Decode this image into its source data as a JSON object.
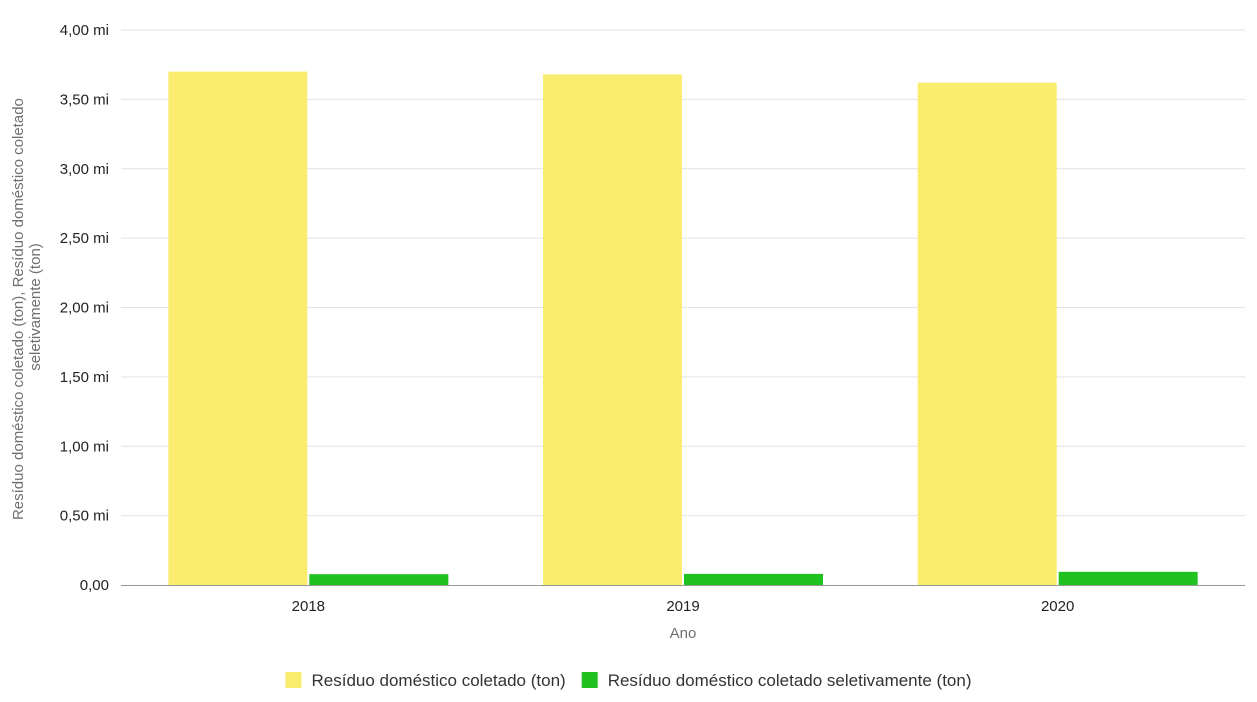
{
  "chart_data": {
    "type": "bar",
    "categories": [
      "2018",
      "2019",
      "2020"
    ],
    "series": [
      {
        "name": "Resíduo doméstico coletado (ton)",
        "color": "#f9ec6e",
        "values": [
          3700000,
          3680000,
          3620000
        ]
      },
      {
        "name": "Resíduo doméstico coletado seletivamente (ton)",
        "color": "#1fc21f",
        "values": [
          78000,
          80000,
          95000
        ]
      }
    ],
    "xlabel": "Ano",
    "ylabel_lines": [
      "Resíduo doméstico coletado (ton), Resíduo doméstico coletado",
      "seletivamente (ton)"
    ],
    "ylim": [
      0,
      4000000
    ],
    "yticks": [
      {
        "value": 0,
        "label": "0,00"
      },
      {
        "value": 500000,
        "label": "0,50 mi"
      },
      {
        "value": 1000000,
        "label": "1,00 mi"
      },
      {
        "value": 1500000,
        "label": "1,50 mi"
      },
      {
        "value": 2000000,
        "label": "2,00 mi"
      },
      {
        "value": 2500000,
        "label": "2,50 mi"
      },
      {
        "value": 3000000,
        "label": "3,00 mi"
      },
      {
        "value": 3500000,
        "label": "3,50 mi"
      },
      {
        "value": 4000000,
        "label": "4,00 mi"
      }
    ],
    "grid": true,
    "legend_position": "bottom"
  }
}
